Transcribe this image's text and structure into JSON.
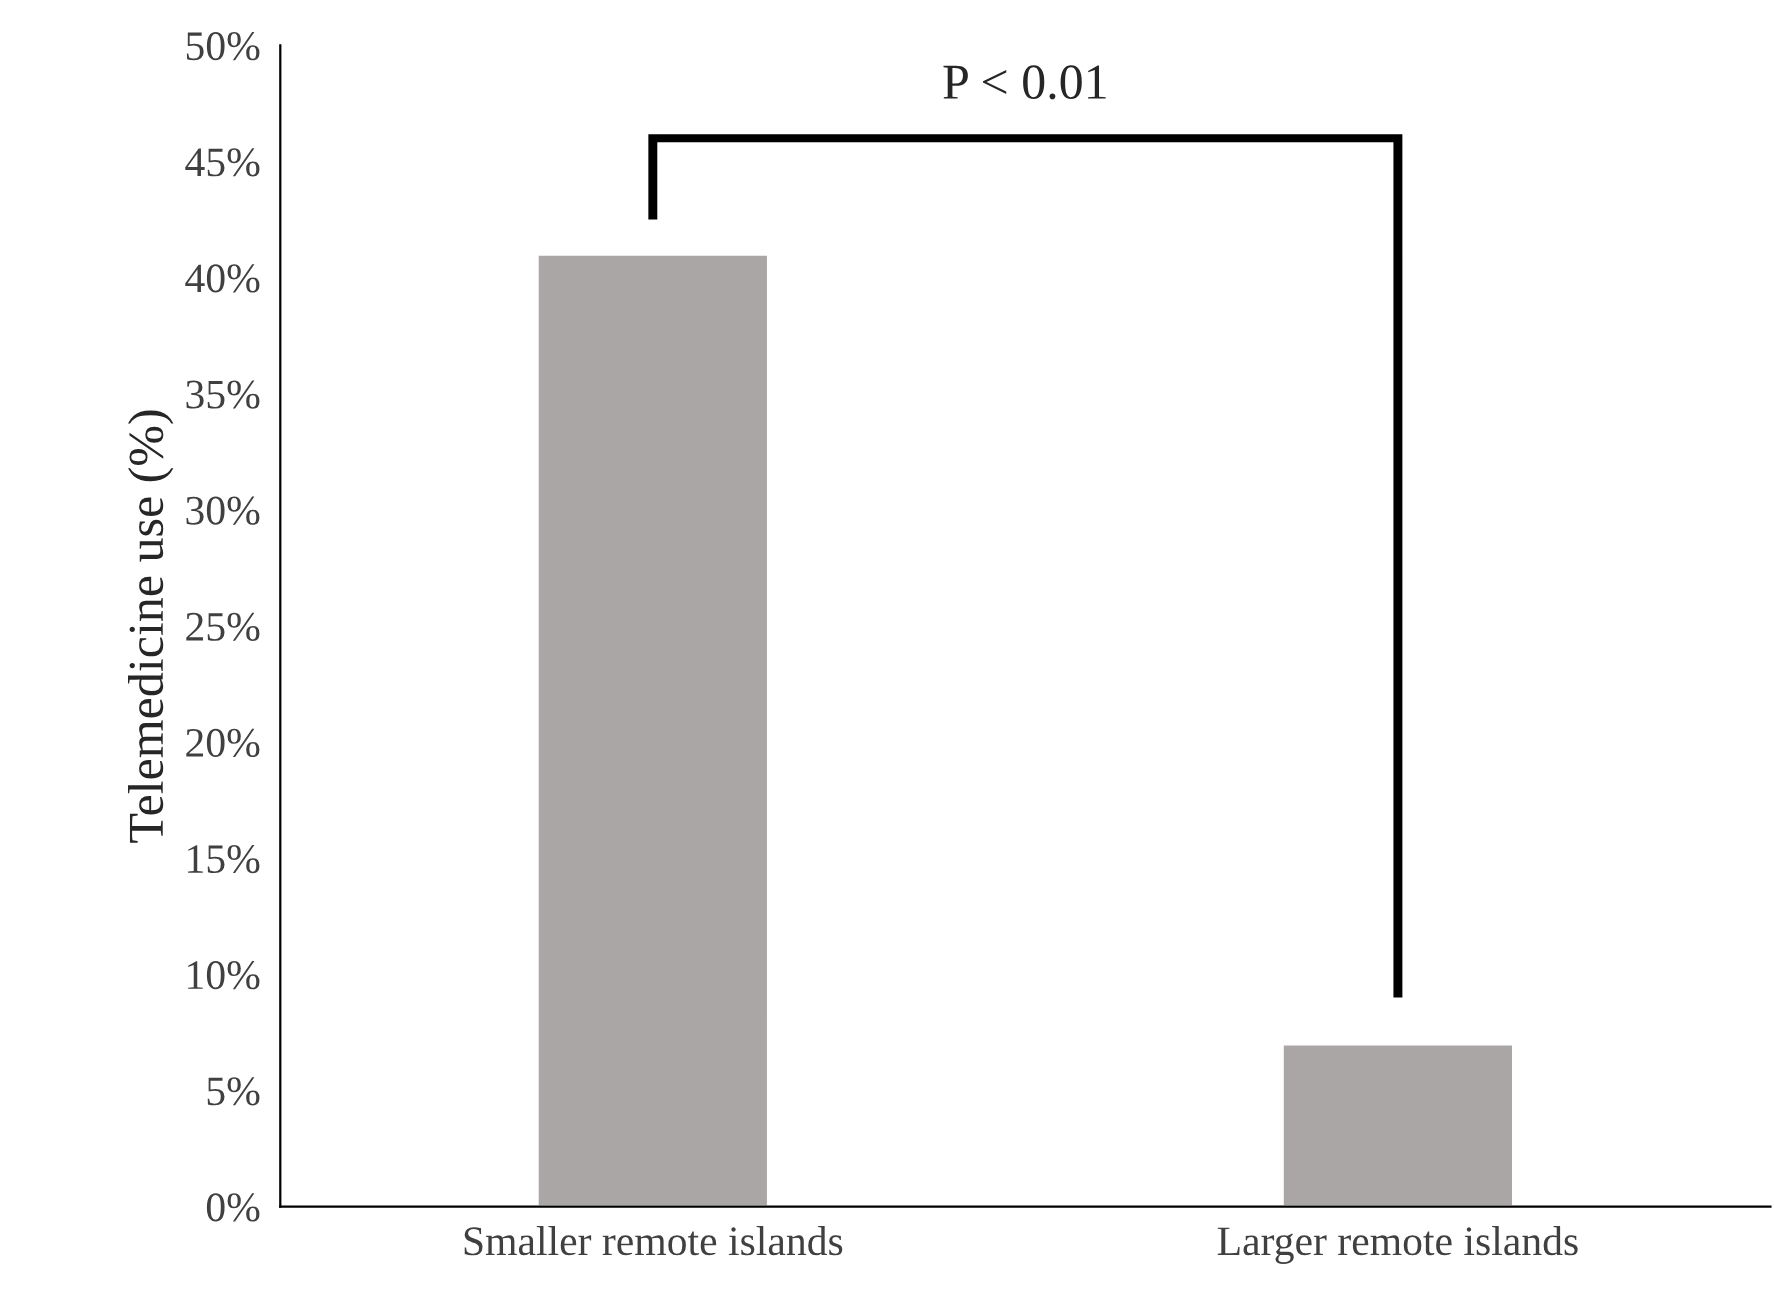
{
  "chart_data": {
    "type": "bar",
    "ylabel": "Telemedicine use (%)",
    "categories": [
      "Smaller remote islands",
      "Larger remote islands"
    ],
    "values": [
      41,
      7
    ],
    "color": "#aaa6a6",
    "ylim": [
      0,
      50
    ],
    "yticks": [
      {
        "value": 0,
        "label": "0%"
      },
      {
        "value": 5,
        "label": "5%"
      },
      {
        "value": 10,
        "label": "10%"
      },
      {
        "value": 15,
        "label": "15%"
      },
      {
        "value": 20,
        "label": "20%"
      },
      {
        "value": 25,
        "label": "25%"
      },
      {
        "value": 30,
        "label": "30%"
      },
      {
        "value": 35,
        "label": "35%"
      },
      {
        "value": 40,
        "label": "40%"
      },
      {
        "value": 45,
        "label": "45%"
      },
      {
        "value": 50,
        "label": "50%"
      }
    ],
    "annotations": [
      "P < 0.01"
    ],
    "grid": false
  }
}
